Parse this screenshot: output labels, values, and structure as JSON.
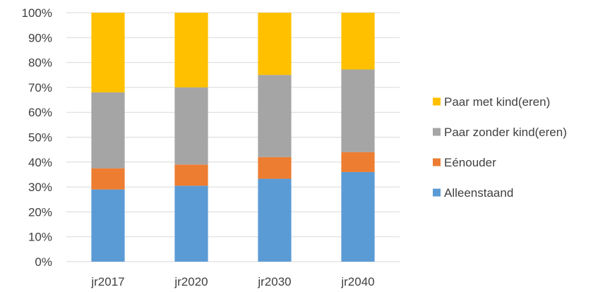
{
  "chart_data": {
    "type": "bar",
    "stacked": true,
    "categories": [
      "jr2017",
      "jr2020",
      "jr2030",
      "jr2040"
    ],
    "series": [
      {
        "name": "Alleenstaand",
        "color": "#5B9BD5",
        "values": [
          29,
          30.5,
          33.3,
          36
        ]
      },
      {
        "name": "Eénouder",
        "color": "#ED7D31",
        "values": [
          8.5,
          8.5,
          8.7,
          8
        ]
      },
      {
        "name": "Paar zonder kind(eren)",
        "color": "#A5A5A5",
        "values": [
          30.5,
          31,
          33,
          33.2
        ]
      },
      {
        "name": "Paar met kind(eren)",
        "color": "#FFC000",
        "values": [
          32,
          30,
          25,
          22.8
        ]
      }
    ],
    "y_ticks": [
      "0%",
      "10%",
      "20%",
      "30%",
      "40%",
      "50%",
      "60%",
      "70%",
      "80%",
      "90%",
      "100%"
    ],
    "ylim": [
      0,
      100
    ],
    "grid": true,
    "legend_position": "right",
    "legend_order": [
      "Paar met kind(eren)",
      "Paar zonder kind(eren)",
      "Eénouder",
      "Alleenstaand"
    ]
  }
}
